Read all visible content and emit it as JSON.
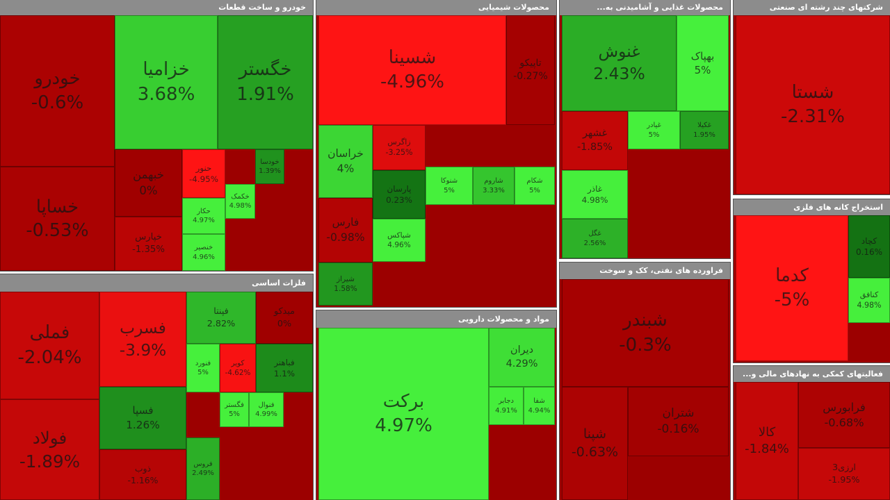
{
  "chart_data": {
    "type": "treemap",
    "sectors": [
      {
        "title": "خودرو و ساخت قطعات",
        "categories": [
          "خودرو",
          "خساپا",
          "خزامیا",
          "خگستر",
          "خبهمن",
          "خپارس",
          "حنور",
          "حکار",
          "خنصیر",
          "خکمک",
          "خودسا"
        ],
        "values": [
          -0.6,
          -0.53,
          3.68,
          1.91,
          0,
          -1.35,
          -4.95,
          4.97,
          4.96,
          4.98,
          1.39
        ],
        "value_labels": [
          "-0.6%",
          "-0.53%",
          "3.68%",
          "1.91%",
          "0%",
          "-1.35%",
          "-4.95%",
          "4.97%",
          "4.96%",
          "4.98%",
          "1.39%"
        ]
      },
      {
        "title": "فلزات اساسی",
        "categories": [
          "فملی",
          "فولاد",
          "فسرب",
          "فسپا",
          "ذوب",
          "فپنتا",
          "میدکو",
          "فنورد",
          "کویر",
          "فباهنر",
          "فگستر",
          "فنوال",
          "فروس"
        ],
        "values": [
          -2.04,
          -1.89,
          -3.9,
          1.26,
          -1.16,
          2.82,
          0,
          5,
          -4.62,
          1.1,
          5,
          4.99,
          2.49
        ],
        "value_labels": [
          "-2.04%",
          "-1.89%",
          "-3.9%",
          "1.26%",
          "-1.16%",
          "2.82%",
          "0%",
          "5%",
          "-4.62%",
          "1.1%",
          "5%",
          "4.99%",
          "2.49%"
        ]
      },
      {
        "title": "محصولات شیمیایی",
        "categories": [
          "شسینا",
          "تاپیکو",
          "خراسان",
          "فارس",
          "شیراز",
          "زاگرس",
          "پارسان",
          "شپاکس",
          "شنوکا",
          "شاروم",
          "شکام"
        ],
        "values": [
          -4.96,
          -0.27,
          4,
          -0.98,
          1.58,
          -3.25,
          0.23,
          4.96,
          5,
          3.33,
          5
        ],
        "value_labels": [
          "-4.96%",
          "-0.27%",
          "4%",
          "-0.98%",
          "1.58%",
          "-3.25%",
          "0.23%",
          "4.96%",
          "5%",
          "3.33%",
          "5%"
        ]
      },
      {
        "title": "مواد و محصولات دارویی",
        "categories": [
          "برکت",
          "دیران",
          "دجابر",
          "شفا"
        ],
        "values": [
          4.97,
          4.29,
          4.91,
          4.94
        ],
        "value_labels": [
          "4.97%",
          "4.29%",
          "4.91%",
          "4.94%"
        ]
      },
      {
        "title": "محصولات غذایی و آشامیدنی به...",
        "categories": [
          "غنوش",
          "بهپاک",
          "غشهر",
          "غیادر",
          "غکیلا",
          "غاذر",
          "غگل"
        ],
        "values": [
          2.43,
          5,
          -1.85,
          5,
          1.95,
          4.98,
          2.56
        ],
        "value_labels": [
          "2.43%",
          "5%",
          "-1.85%",
          "5%",
          "1.95%",
          "4.98%",
          "2.56%"
        ]
      },
      {
        "title": "فراورده های نفتی، کک و سوخت",
        "categories": [
          "شبندر",
          "شپنا",
          "شتران"
        ],
        "values": [
          -0.3,
          -0.63,
          -0.16
        ],
        "value_labels": [
          "-0.3%",
          "-0.63%",
          "-0.16%"
        ]
      },
      {
        "title": "شرکتهای چند رشته ای صنعتی",
        "categories": [
          "شستا"
        ],
        "values": [
          -2.31
        ],
        "value_labels": [
          "-2.31%"
        ]
      },
      {
        "title": "استخراج کانه های فلزی",
        "categories": [
          "کدما",
          "کچاد",
          "کنافق"
        ],
        "values": [
          -5,
          0.16,
          4.98
        ],
        "value_labels": [
          "-5%",
          "0.16%",
          "4.98%"
        ]
      },
      {
        "title": "فعالیتهای کمکی به نهادهای مالی و...",
        "categories": [
          "کالا",
          "فرابورس",
          "ارزی3"
        ],
        "values": [
          -1.84,
          -0.68,
          -1.95
        ],
        "value_labels": [
          "-1.84%",
          "-0.68%",
          "-1.95%"
        ]
      }
    ]
  }
}
